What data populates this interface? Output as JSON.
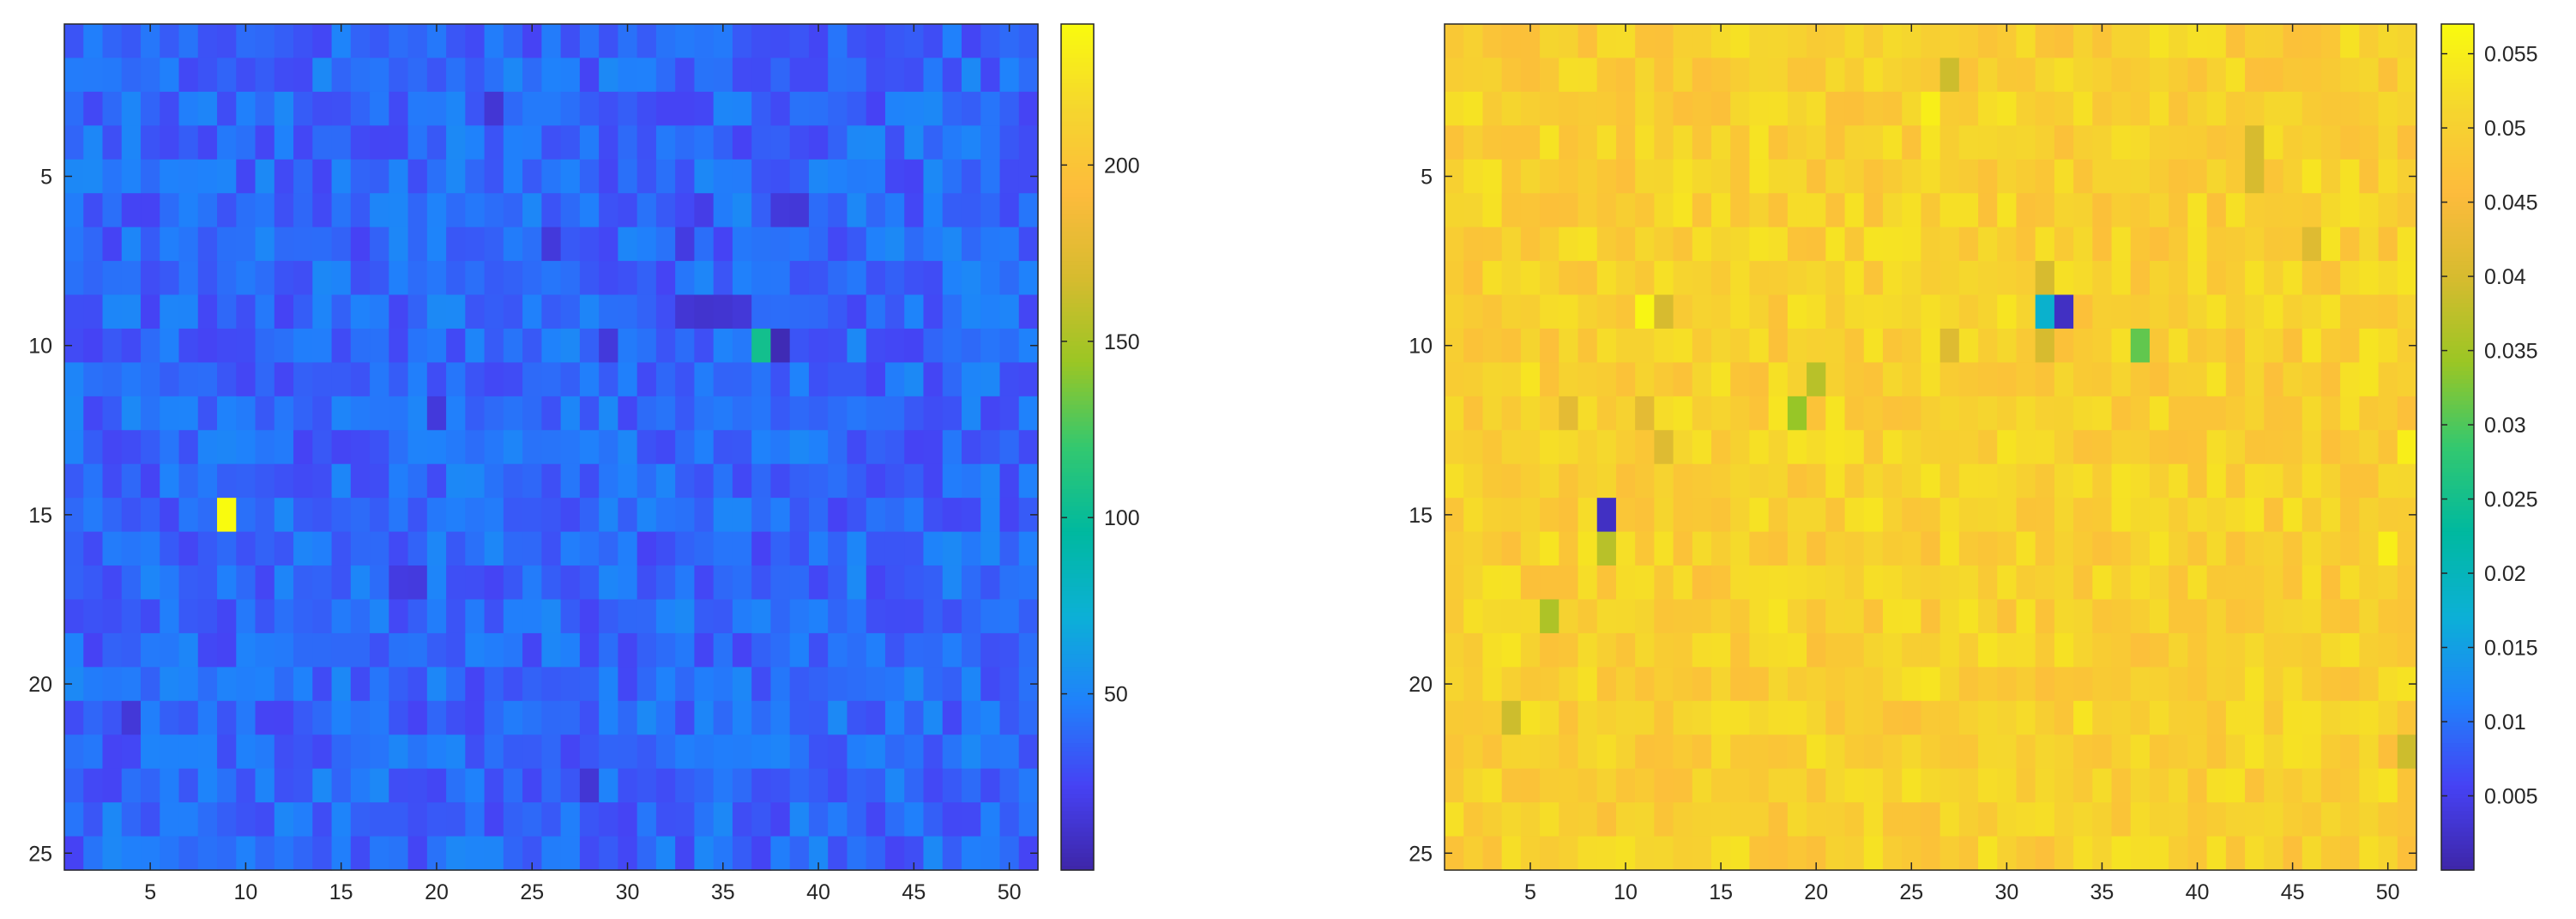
{
  "chart_data": [
    {
      "type": "heatmap",
      "title": "",
      "xlabel": "",
      "ylabel": "",
      "grid": false,
      "colormap": "parula",
      "colormap_stops": [
        "#3e26a8",
        "#4642f4",
        "#1f82fb",
        "#0cb0d6",
        "#00b99f",
        "#33c86f",
        "#9bc624",
        "#d6bb2f",
        "#fdbb3c",
        "#f5d62e",
        "#f9fb0e"
      ],
      "n_rows": 25,
      "n_cols": 51,
      "x_ticks": [
        5,
        10,
        15,
        20,
        25,
        30,
        35,
        40,
        45,
        50
      ],
      "y_ticks": [
        5,
        10,
        15,
        20,
        25
      ],
      "colorbar": {
        "limits": [
          0,
          240
        ],
        "ticks": [
          50,
          100,
          150,
          200
        ],
        "tick_labels": [
          "50",
          "100",
          "150",
          "200"
        ]
      },
      "base_value": 38,
      "noise": 14,
      "highlights": [
        {
          "row": 15,
          "col": 9,
          "value": 240
        },
        {
          "row": 10,
          "col": 37,
          "value": 105
        },
        {
          "row": 10,
          "col": 38,
          "value": 4
        },
        {
          "row": 9,
          "col": 33,
          "value": 14
        },
        {
          "row": 9,
          "col": 34,
          "value": 12
        },
        {
          "row": 9,
          "col": 35,
          "value": 13
        },
        {
          "row": 9,
          "col": 36,
          "value": 15
        },
        {
          "row": 6,
          "col": 38,
          "value": 16
        },
        {
          "row": 6,
          "col": 39,
          "value": 15
        },
        {
          "row": 7,
          "col": 33,
          "value": 18
        },
        {
          "row": 7,
          "col": 26,
          "value": 16
        },
        {
          "row": 3,
          "col": 23,
          "value": 14
        },
        {
          "row": 12,
          "col": 20,
          "value": 16
        },
        {
          "row": 17,
          "col": 18,
          "value": 18
        },
        {
          "row": 17,
          "col": 19,
          "value": 17
        },
        {
          "row": 21,
          "col": 4,
          "value": 15
        },
        {
          "row": 23,
          "col": 28,
          "value": 14
        },
        {
          "row": 10,
          "col": 29,
          "value": 16
        },
        {
          "row": 6,
          "col": 34,
          "value": 20
        }
      ]
    },
    {
      "type": "heatmap",
      "title": "",
      "xlabel": "",
      "ylabel": "",
      "grid": false,
      "colormap": "parula",
      "n_rows": 25,
      "n_cols": 51,
      "x_ticks": [
        5,
        10,
        15,
        20,
        25,
        30,
        35,
        40,
        45,
        50
      ],
      "y_ticks": [
        5,
        10,
        15,
        20,
        25
      ],
      "colorbar": {
        "limits": [
          0,
          0.057
        ],
        "ticks": [
          0.005,
          0.01,
          0.015,
          0.02,
          0.025,
          0.03,
          0.035,
          0.04,
          0.045,
          0.05,
          0.055
        ],
        "tick_labels": [
          "0.005",
          "0.01",
          "0.015",
          "0.02",
          "0.025",
          "0.03",
          "0.035",
          "0.04",
          "0.045",
          "0.05",
          "0.055"
        ]
      },
      "base_value": 0.05,
      "noise": 0.0035,
      "highlights": [
        {
          "row": 15,
          "col": 9,
          "value": 0.002
        },
        {
          "row": 16,
          "col": 9,
          "value": 0.037
        },
        {
          "row": 9,
          "col": 32,
          "value": 0.018
        },
        {
          "row": 9,
          "col": 33,
          "value": 0.002
        },
        {
          "row": 10,
          "col": 37,
          "value": 0.031
        },
        {
          "row": 10,
          "col": 32,
          "value": 0.04
        },
        {
          "row": 8,
          "col": 32,
          "value": 0.04
        },
        {
          "row": 12,
          "col": 19,
          "value": 0.034
        },
        {
          "row": 11,
          "col": 20,
          "value": 0.037
        },
        {
          "row": 9,
          "col": 11,
          "value": 0.056
        },
        {
          "row": 9,
          "col": 12,
          "value": 0.04
        },
        {
          "row": 2,
          "col": 27,
          "value": 0.039
        },
        {
          "row": 4,
          "col": 43,
          "value": 0.04
        },
        {
          "row": 5,
          "col": 43,
          "value": 0.04
        },
        {
          "row": 18,
          "col": 6,
          "value": 0.036
        },
        {
          "row": 21,
          "col": 4,
          "value": 0.039
        },
        {
          "row": 22,
          "col": 51,
          "value": 0.039
        },
        {
          "row": 13,
          "col": 51,
          "value": 0.055
        },
        {
          "row": 16,
          "col": 50,
          "value": 0.055
        },
        {
          "row": 3,
          "col": 26,
          "value": 0.055
        },
        {
          "row": 13,
          "col": 12,
          "value": 0.041
        },
        {
          "row": 12,
          "col": 7,
          "value": 0.042
        },
        {
          "row": 12,
          "col": 11,
          "value": 0.042
        },
        {
          "row": 10,
          "col": 27,
          "value": 0.041
        },
        {
          "row": 7,
          "col": 46,
          "value": 0.041
        }
      ]
    }
  ]
}
